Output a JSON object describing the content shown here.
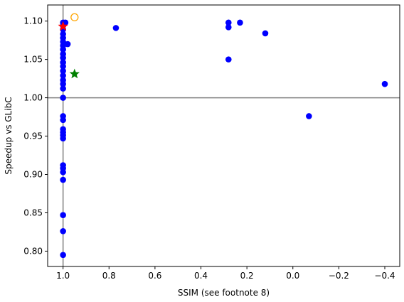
{
  "chart_data": {
    "type": "scatter",
    "xlabel": "SSIM (see footnote 8)",
    "ylabel": "Speedup vs GLibC",
    "xlim": [
      1.067,
      -0.465
    ],
    "ylim": [
      0.78,
      1.121
    ],
    "x_inverted": true,
    "grid": false,
    "x_ticks": [
      {
        "value": 1.0,
        "label": "1.0"
      },
      {
        "value": 0.8,
        "label": "0.8"
      },
      {
        "value": 0.6,
        "label": "0.6"
      },
      {
        "value": 0.4,
        "label": "0.4"
      },
      {
        "value": 0.2,
        "label": "0.2"
      },
      {
        "value": 0.0,
        "label": "0.0"
      },
      {
        "value": -0.2,
        "label": "−0.2"
      },
      {
        "value": -0.4,
        "label": "−0.4"
      }
    ],
    "y_ticks": [
      {
        "value": 0.8,
        "label": "0.80"
      },
      {
        "value": 0.85,
        "label": "0.85"
      },
      {
        "value": 0.9,
        "label": "0.90"
      },
      {
        "value": 0.95,
        "label": "0.95"
      },
      {
        "value": 1.0,
        "label": "1.00"
      },
      {
        "value": 1.05,
        "label": "1.05"
      },
      {
        "value": 1.1,
        "label": "1.10"
      }
    ],
    "reference_lines": {
      "x": 1.0,
      "y": 1.0,
      "color": "#808080"
    },
    "series": [
      {
        "marker": "circle",
        "color": "#0000ff",
        "points": [
          {
            "x": 1.0,
            "y": 1.098
          },
          {
            "x": 1.0,
            "y": 1.094
          },
          {
            "x": 1.0,
            "y": 1.089
          },
          {
            "x": 1.0,
            "y": 1.083
          },
          {
            "x": 1.0,
            "y": 1.078
          },
          {
            "x": 1.0,
            "y": 1.073
          },
          {
            "x": 1.0,
            "y": 1.068
          },
          {
            "x": 1.0,
            "y": 1.063
          },
          {
            "x": 1.0,
            "y": 1.057
          },
          {
            "x": 1.0,
            "y": 1.052
          },
          {
            "x": 1.0,
            "y": 1.046
          },
          {
            "x": 1.0,
            "y": 1.041
          },
          {
            "x": 1.0,
            "y": 1.035
          },
          {
            "x": 1.0,
            "y": 1.029
          },
          {
            "x": 1.0,
            "y": 1.023
          },
          {
            "x": 1.0,
            "y": 1.018
          },
          {
            "x": 1.0,
            "y": 1.012
          },
          {
            "x": 1.0,
            "y": 1.0
          },
          {
            "x": 1.0,
            "y": 0.976
          },
          {
            "x": 1.0,
            "y": 0.971
          },
          {
            "x": 1.0,
            "y": 0.959
          },
          {
            "x": 1.0,
            "y": 0.955
          },
          {
            "x": 1.0,
            "y": 0.951
          },
          {
            "x": 1.0,
            "y": 0.947
          },
          {
            "x": 1.0,
            "y": 0.912
          },
          {
            "x": 1.0,
            "y": 0.908
          },
          {
            "x": 1.0,
            "y": 0.903
          },
          {
            "x": 1.0,
            "y": 0.893
          },
          {
            "x": 1.0,
            "y": 0.847
          },
          {
            "x": 1.0,
            "y": 0.826
          },
          {
            "x": 1.0,
            "y": 0.795
          },
          {
            "x": 0.99,
            "y": 1.098
          },
          {
            "x": 0.98,
            "y": 1.07
          },
          {
            "x": 0.77,
            "y": 1.091
          },
          {
            "x": 0.28,
            "y": 1.098
          },
          {
            "x": 0.28,
            "y": 1.092
          },
          {
            "x": 0.28,
            "y": 1.05
          },
          {
            "x": 0.23,
            "y": 1.098
          },
          {
            "x": 0.12,
            "y": 1.084
          },
          {
            "x": -0.07,
            "y": 0.976
          },
          {
            "x": -0.4,
            "y": 1.018
          }
        ]
      },
      {
        "marker": "star",
        "color": "#ff0000",
        "points": [
          {
            "x": 1.0,
            "y": 1.093
          }
        ]
      },
      {
        "marker": "star",
        "color": "#008000",
        "points": [
          {
            "x": 0.95,
            "y": 1.031
          }
        ]
      },
      {
        "marker": "hollow-circle",
        "color": "#ffa500",
        "points": [
          {
            "x": 0.95,
            "y": 1.105
          }
        ]
      }
    ]
  }
}
